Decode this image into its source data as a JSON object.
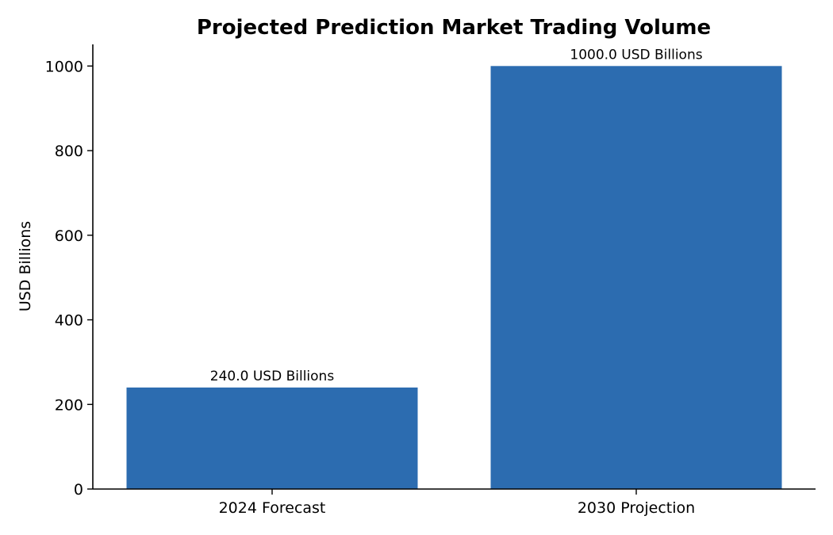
{
  "chart_data": {
    "type": "bar",
    "title": "Projected Prediction Market Trading Volume",
    "xlabel": "",
    "ylabel": "USD Billions",
    "categories": [
      "2024 Forecast",
      "2030 Projection"
    ],
    "values": [
      240.0,
      1000.0
    ],
    "data_labels": [
      "240.0 USD Billions",
      "1000.0 USD Billions"
    ],
    "ylim": [
      0,
      1050
    ],
    "yticks": [
      0,
      200,
      400,
      600,
      800,
      1000
    ],
    "bar_color": "#2c6cb0",
    "grid": false,
    "legend": "none"
  }
}
